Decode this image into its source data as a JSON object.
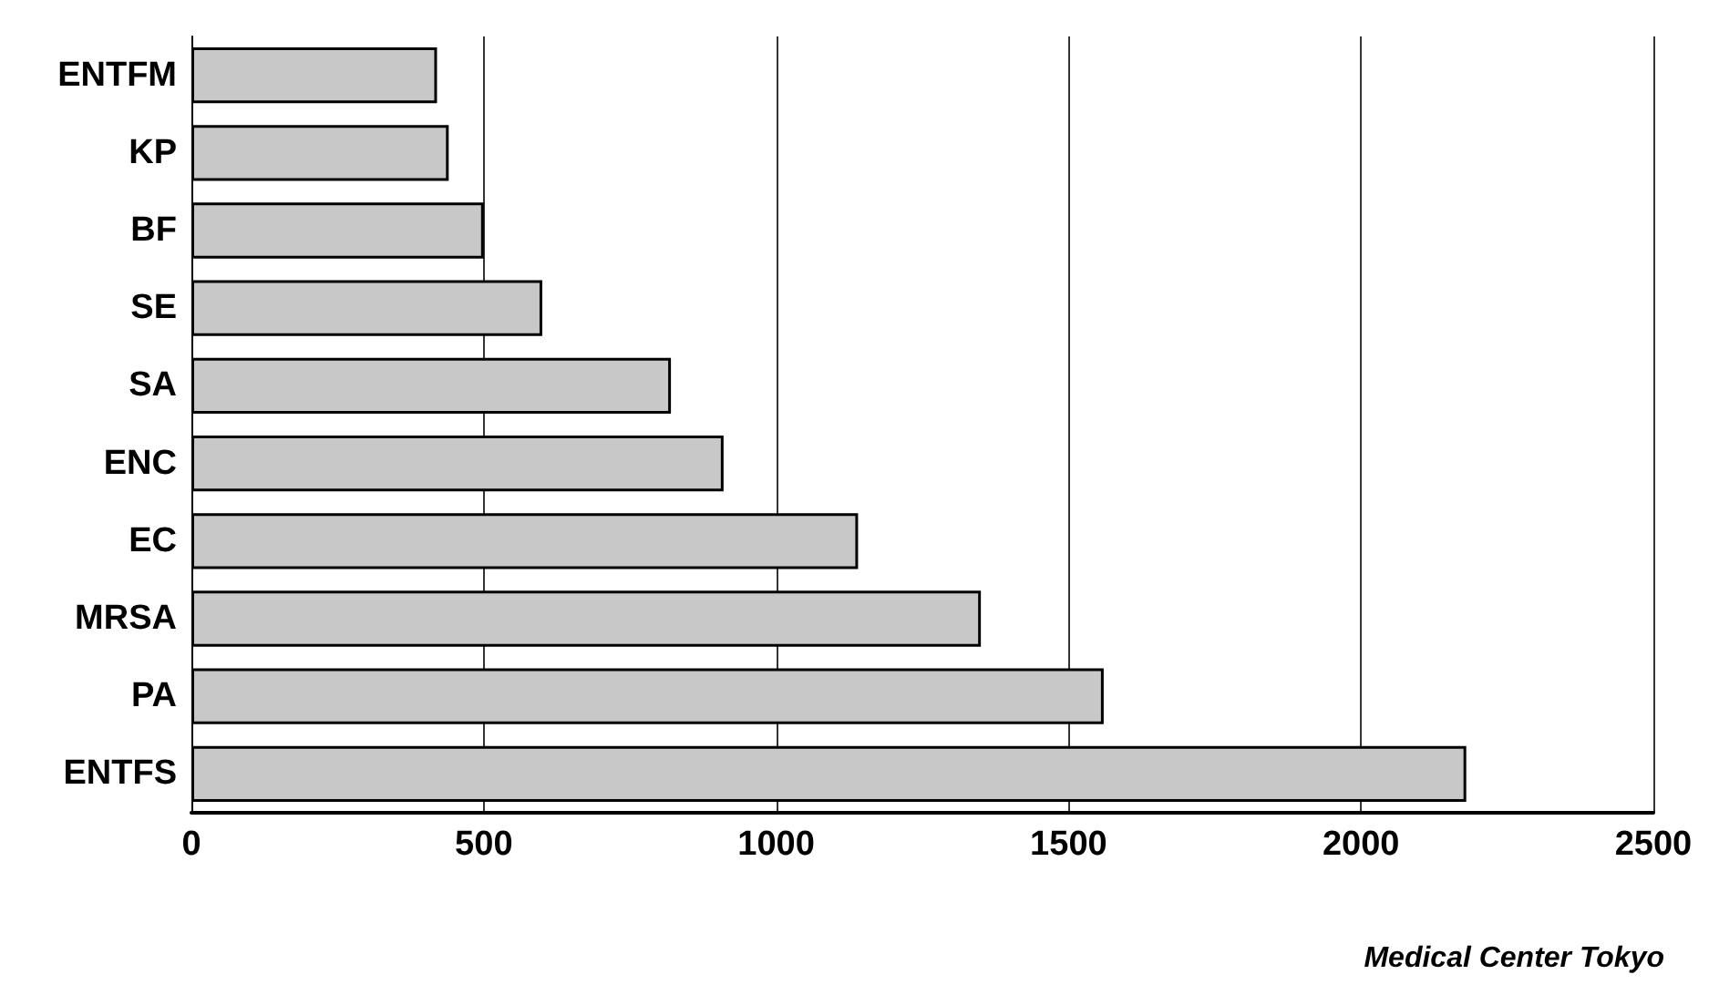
{
  "chart_data": {
    "type": "bar",
    "orientation": "horizontal",
    "categories": [
      "ENTFM",
      "KP",
      "BF",
      "SE",
      "SA",
      "ENC",
      "EC",
      "MRSA",
      "PA",
      "ENTFS"
    ],
    "values": [
      420,
      440,
      500,
      600,
      820,
      910,
      1140,
      1350,
      1560,
      2180
    ],
    "color": "#c8c8c8",
    "xlim": [
      0,
      2500
    ],
    "xticks": [
      0,
      500,
      1000,
      1500,
      2000,
      2500
    ],
    "grid": "x",
    "annotations": [
      "Medical Center Tokyo"
    ]
  }
}
